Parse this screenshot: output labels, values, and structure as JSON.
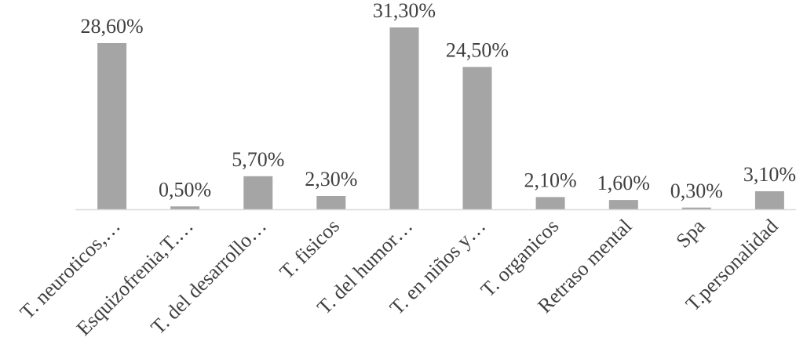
{
  "chart_data": {
    "type": "bar",
    "categories": [
      "T. neuroticos,…",
      "Esquizofrenia,T.…",
      "T. del desarrollo…",
      "T. fisicos",
      "T. del humor…",
      "T. en niños y…",
      "T. organicos",
      "Retraso mental",
      "Spa",
      "T.personalidad"
    ],
    "values": [
      28.6,
      0.5,
      5.7,
      2.3,
      31.3,
      24.5,
      2.1,
      1.6,
      0.3,
      3.1
    ],
    "value_labels": [
      "28,60%",
      "0,50%",
      "5,70%",
      "2,30%",
      "31,30%",
      "24,50%",
      "2,10%",
      "1,60%",
      "0,30%",
      "3,10%"
    ],
    "title": "",
    "xlabel": "",
    "ylabel": "",
    "ylim": [
      0,
      31.3
    ],
    "grid": false,
    "legend": "none",
    "colors": {
      "bar": "#a5a5a5",
      "axis": "#d9d9d9",
      "text": "#404040"
    }
  }
}
